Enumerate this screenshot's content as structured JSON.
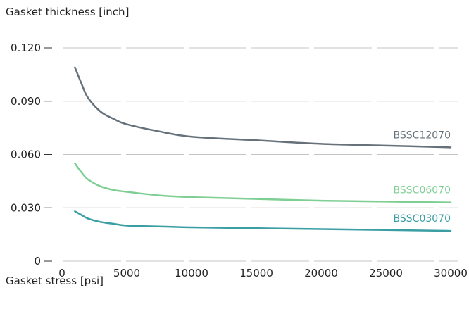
{
  "chart_data": {
    "type": "line",
    "title": "",
    "xlabel": "Gasket stress [psi]",
    "ylabel": "Gasket thickness [inch]",
    "xlim": [
      0,
      30000
    ],
    "ylim": [
      0,
      0.12
    ],
    "grid": "horizontal dashed",
    "x_ticks": [
      0,
      5000,
      10000,
      15000,
      20000,
      25000,
      30000
    ],
    "x_tick_labels": [
      "0",
      "5000",
      "10000",
      "15000",
      "20000",
      "25000",
      "30000"
    ],
    "y_ticks": [
      0,
      0.03,
      0.06,
      0.09,
      0.12
    ],
    "y_tick_labels": [
      "0",
      "0.030",
      "0.060",
      "0.090",
      "0.120"
    ],
    "series": [
      {
        "name": "BSSC12070",
        "color": "#66717a",
        "points": [
          [
            1000,
            0.109
          ],
          [
            1500,
            0.1
          ],
          [
            2000,
            0.092
          ],
          [
            3000,
            0.084
          ],
          [
            4000,
            0.08
          ],
          [
            5000,
            0.077
          ],
          [
            7500,
            0.073
          ],
          [
            10000,
            0.07
          ],
          [
            15000,
            0.068
          ],
          [
            20000,
            0.066
          ],
          [
            25000,
            0.065
          ],
          [
            30000,
            0.064
          ]
        ]
      },
      {
        "name": "BSSC06070",
        "color": "#7fcf95",
        "points": [
          [
            1000,
            0.055
          ],
          [
            1500,
            0.05
          ],
          [
            2000,
            0.046
          ],
          [
            3000,
            0.042
          ],
          [
            4000,
            0.04
          ],
          [
            5000,
            0.039
          ],
          [
            7500,
            0.037
          ],
          [
            10000,
            0.036
          ],
          [
            15000,
            0.035
          ],
          [
            20000,
            0.034
          ],
          [
            25000,
            0.0335
          ],
          [
            30000,
            0.033
          ]
        ]
      },
      {
        "name": "BSSC03070",
        "color": "#3a9ea3",
        "points": [
          [
            1000,
            0.028
          ],
          [
            1500,
            0.026
          ],
          [
            2000,
            0.024
          ],
          [
            3000,
            0.022
          ],
          [
            4000,
            0.021
          ],
          [
            5000,
            0.02
          ],
          [
            7500,
            0.0195
          ],
          [
            10000,
            0.019
          ],
          [
            15000,
            0.0185
          ],
          [
            20000,
            0.018
          ],
          [
            25000,
            0.0175
          ],
          [
            30000,
            0.017
          ]
        ]
      }
    ]
  }
}
